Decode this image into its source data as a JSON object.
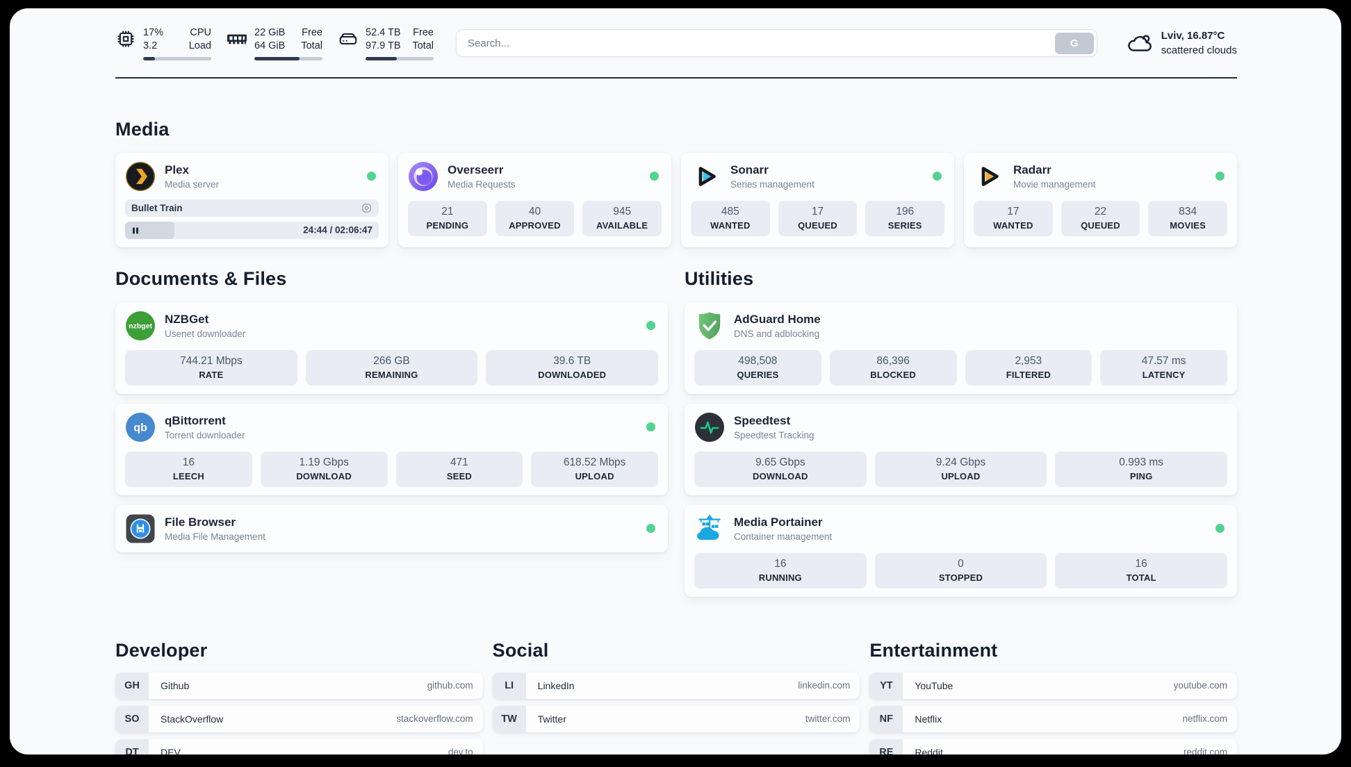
{
  "header": {
    "cpu": {
      "icon": "cpu-icon",
      "value1": "17%",
      "value2": "3.2",
      "label1": "CPU",
      "label2": "Load",
      "progress_pct": 17
    },
    "ram": {
      "icon": "ram-icon",
      "value1": "22 GiB",
      "value2": "64 GiB",
      "label1": "Free",
      "label2": "Total",
      "progress_pct": 66
    },
    "disk": {
      "icon": "disk-icon",
      "value1": "52.4 TB",
      "value2": "97.9 TB",
      "label1": "Free",
      "label2": "Total",
      "progress_pct": 46
    },
    "search": {
      "placeholder": "Search...",
      "button_label": "G"
    },
    "weather": {
      "icon": "cloud-icon",
      "location": "Lviv, 16.87°C",
      "condition": "scattered clouds"
    }
  },
  "sections": {
    "media": "Media",
    "documents": "Documents & Files",
    "utilities": "Utilities",
    "developer": "Developer",
    "social": "Social",
    "entertainment": "Entertainment"
  },
  "apps": {
    "plex": {
      "icon": "plex-icon",
      "name": "Plex",
      "desc": "Media server",
      "online": true,
      "now_playing": "Bullet Train",
      "time": "24:44 / 02:06:47",
      "progress_pct": 19.5
    },
    "overseerr": {
      "icon": "overseerr-icon",
      "name": "Overseerr",
      "desc": "Media Requests",
      "online": true,
      "stats": [
        {
          "value": "21",
          "label": "PENDING"
        },
        {
          "value": "40",
          "label": "APPROVED"
        },
        {
          "value": "945",
          "label": "AVAILABLE"
        }
      ]
    },
    "sonarr": {
      "icon": "sonarr-icon",
      "name": "Sonarr",
      "desc": "Series management",
      "online": true,
      "stats": [
        {
          "value": "485",
          "label": "WANTED"
        },
        {
          "value": "17",
          "label": "QUEUED"
        },
        {
          "value": "196",
          "label": "SERIES"
        }
      ]
    },
    "radarr": {
      "icon": "radarr-icon",
      "name": "Radarr",
      "desc": "Movie management",
      "online": true,
      "stats": [
        {
          "value": "17",
          "label": "WANTED"
        },
        {
          "value": "22",
          "label": "QUEUED"
        },
        {
          "value": "834",
          "label": "MOVIES"
        }
      ]
    },
    "nzbget": {
      "icon": "nzbget-icon",
      "name": "NZBGet",
      "desc": "Usenet downloader",
      "online": true,
      "stats": [
        {
          "value": "744.21 Mbps",
          "label": "RATE"
        },
        {
          "value": "266 GB",
          "label": "REMAINING"
        },
        {
          "value": "39.6 TB",
          "label": "DOWNLOADED"
        }
      ]
    },
    "qbittorrent": {
      "icon": "qbittorrent-icon",
      "name": "qBittorrent",
      "desc": "Torrent downloader",
      "online": true,
      "stats": [
        {
          "value": "16",
          "label": "LEECH"
        },
        {
          "value": "1.19 Gbps",
          "label": "DOWNLOAD"
        },
        {
          "value": "471",
          "label": "SEED"
        },
        {
          "value": "618.52 Mbps",
          "label": "UPLOAD"
        }
      ]
    },
    "filebrowser": {
      "icon": "filebrowser-icon",
      "name": "File Browser",
      "desc": "Media File Management",
      "online": true,
      "stats": []
    },
    "adguard": {
      "icon": "adguard-icon",
      "name": "AdGuard Home",
      "desc": "DNS and adblocking",
      "online": false,
      "stats": [
        {
          "value": "498,508",
          "label": "QUERIES"
        },
        {
          "value": "86,396",
          "label": "BLOCKED"
        },
        {
          "value": "2,953",
          "label": "FILTERED"
        },
        {
          "value": "47.57 ms",
          "label": "LATENCY"
        }
      ]
    },
    "speedtest": {
      "icon": "speedtest-icon",
      "name": "Speedtest",
      "desc": "Speedtest Tracking",
      "online": false,
      "stats": [
        {
          "value": "9.65 Gbps",
          "label": "DOWNLOAD"
        },
        {
          "value": "9.24 Gbps",
          "label": "UPLOAD"
        },
        {
          "value": "0.993 ms",
          "label": "PING"
        }
      ]
    },
    "portainer": {
      "icon": "portainer-icon",
      "name": "Media Portainer",
      "desc": "Container management",
      "online": true,
      "stats": [
        {
          "value": "16",
          "label": "RUNNING"
        },
        {
          "value": "0",
          "label": "STOPPED"
        },
        {
          "value": "16",
          "label": "TOTAL"
        }
      ]
    }
  },
  "bookmarks": {
    "developer": [
      {
        "abbr": "GH",
        "name": "Github",
        "url": "github.com"
      },
      {
        "abbr": "SO",
        "name": "StackOverflow",
        "url": "stackoverflow.com"
      },
      {
        "abbr": "DT",
        "name": "DEV",
        "url": "dev.to"
      }
    ],
    "social": [
      {
        "abbr": "LI",
        "name": "LinkedIn",
        "url": "linkedin.com"
      },
      {
        "abbr": "TW",
        "name": "Twitter",
        "url": "twitter.com"
      }
    ],
    "entertainment": [
      {
        "abbr": "YT",
        "name": "YouTube",
        "url": "youtube.com"
      },
      {
        "abbr": "NF",
        "name": "Netflix",
        "url": "netflix.com"
      },
      {
        "abbr": "RE",
        "name": "Reddit",
        "url": "reddit.com"
      }
    ]
  },
  "colors": {
    "status_online": "#52d392",
    "plex_gold": "#eba32a",
    "sonarr_cyan": "#33c5f0",
    "radarr_gold": "#f2a93b",
    "header_progress": "#313c51"
  }
}
